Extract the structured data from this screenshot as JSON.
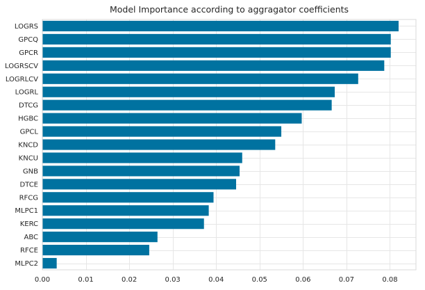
{
  "chart_data": {
    "type": "bar",
    "orientation": "horizontal",
    "title": "Model Importance according to aggragator coefficients",
    "xlabel": "",
    "ylabel": "",
    "categories": [
      "LOGRS",
      "GPCQ",
      "GPCR",
      "LOGRSCV",
      "LOGRLCV",
      "LOGRL",
      "DTCG",
      "HGBC",
      "GPCL",
      "KNCD",
      "KNCU",
      "GNB",
      "DTCE",
      "RFCG",
      "MLPC1",
      "KERC",
      "ABC",
      "RFCE",
      "MLPC2"
    ],
    "values": [
      0.082,
      0.0802,
      0.0802,
      0.0787,
      0.0727,
      0.0673,
      0.0666,
      0.0597,
      0.055,
      0.0536,
      0.046,
      0.0454,
      0.0446,
      0.0394,
      0.0383,
      0.0372,
      0.0265,
      0.0246,
      0.0033
    ],
    "xlim": [
      0.0,
      0.086
    ],
    "xticks": [
      0.0,
      0.01,
      0.02,
      0.03,
      0.04,
      0.05,
      0.06,
      0.07,
      0.08
    ],
    "xtick_labels": [
      "0.00",
      "0.01",
      "0.02",
      "0.03",
      "0.04",
      "0.05",
      "0.06",
      "0.07",
      "0.08"
    ],
    "bar_color": "#0072a0",
    "grid": true
  }
}
